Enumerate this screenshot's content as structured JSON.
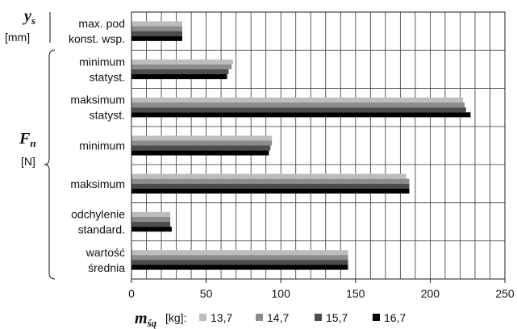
{
  "chart_data": {
    "type": "bar",
    "orientation": "horizontal",
    "categories": [
      [
        "max. pod",
        "konst. wsp."
      ],
      [
        "minimum",
        "statyst."
      ],
      [
        "maksimum",
        "statyst."
      ],
      [
        "minimum"
      ],
      [
        "maksimum"
      ],
      [
        "odchylenie",
        "standard."
      ],
      [
        "wartość",
        "średnia"
      ]
    ],
    "series": [
      {
        "name": "13,7",
        "color": "#bdbdbd",
        "values": [
          34,
          68,
          222,
          94,
          184,
          26,
          145
        ]
      },
      {
        "name": "14,7",
        "color": "#8c8c8c",
        "values": [
          34,
          67,
          223,
          94,
          186,
          26,
          145
        ]
      },
      {
        "name": "15,7",
        "color": "#4d4d4d",
        "values": [
          34,
          65,
          224,
          93,
          186,
          26,
          145
        ]
      },
      {
        "name": "16,7",
        "color": "#000000",
        "values": [
          34,
          64,
          227,
          92,
          186,
          27,
          145
        ]
      }
    ],
    "xlim": [
      0,
      250
    ],
    "xticks": [
      "0",
      "50",
      "100",
      "150",
      "200",
      "250"
    ],
    "grid": "vertical every 10",
    "left_labels": {
      "ys_symbol": "y",
      "ys_subscript": "s",
      "ys_unit": "[mm]",
      "fn_symbol": "F",
      "fn_subscript": "n",
      "fn_unit": "[N]"
    },
    "legend": {
      "placement": "bottom",
      "symbol": "m",
      "subscript": "śą",
      "unit": "[kg]:"
    }
  }
}
